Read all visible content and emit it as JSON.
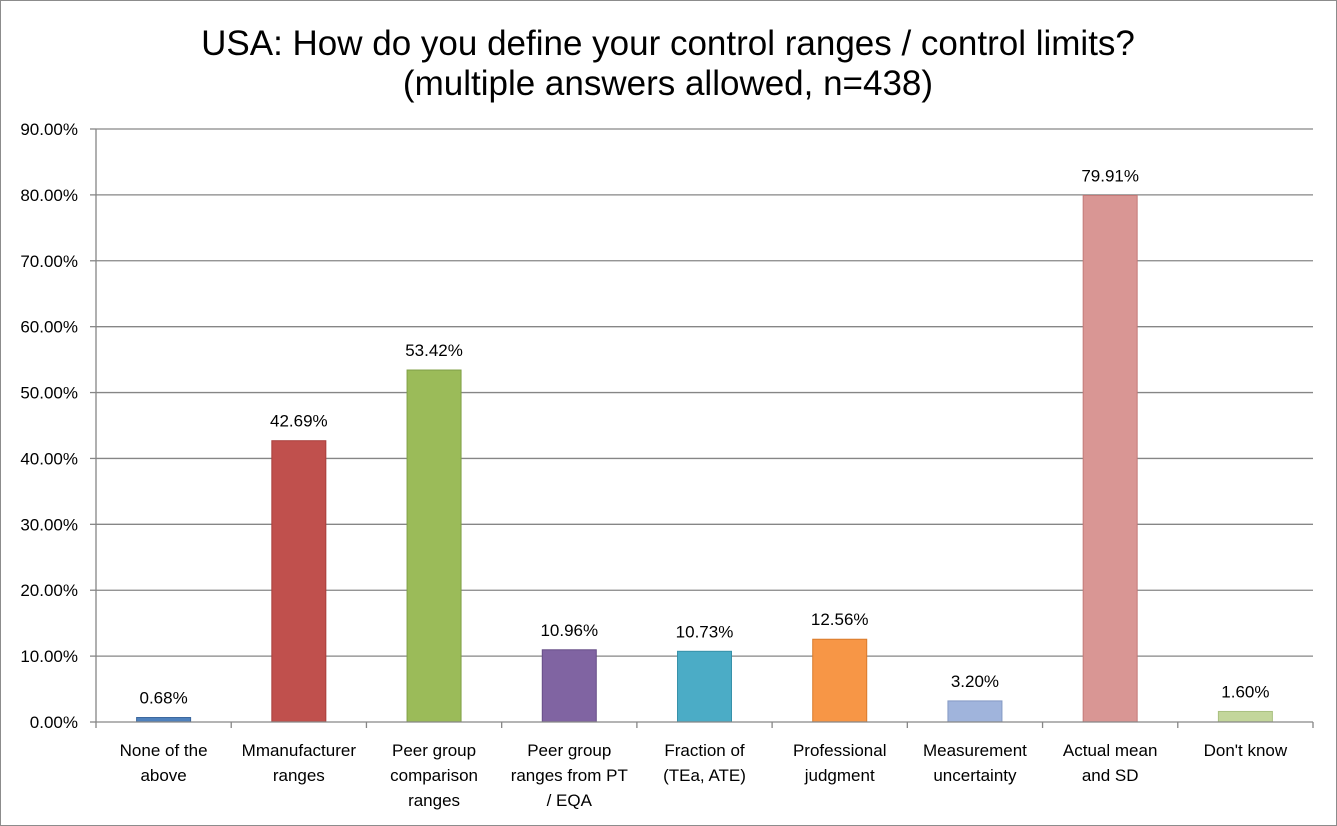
{
  "chart_data": {
    "type": "bar",
    "title_lines": [
      "USA: How do you define your control ranges / control limits?",
      "(multiple answers allowed, n=438)"
    ],
    "xlabel": "",
    "ylabel": "",
    "ylim": [
      0,
      90
    ],
    "yticks": [
      0,
      10,
      20,
      30,
      40,
      50,
      60,
      70,
      80,
      90
    ],
    "ytick_labels": [
      "0.00%",
      "10.00%",
      "20.00%",
      "30.00%",
      "40.00%",
      "50.00%",
      "60.00%",
      "70.00%",
      "80.00%",
      "90.00%"
    ],
    "grid": true,
    "legend": "none",
    "categories": [
      [
        "None of the",
        "above"
      ],
      [
        "Mmanufacturer",
        "ranges"
      ],
      [
        "Peer group",
        "comparison",
        "ranges"
      ],
      [
        "Peer group",
        "ranges from PT",
        "/ EQA"
      ],
      [
        "Fraction of",
        "(TEa, ATE)"
      ],
      [
        "Professional",
        "judgment"
      ],
      [
        "Measurement",
        "uncertainty"
      ],
      [
        "Actual mean",
        "and SD"
      ],
      [
        "Don't know"
      ]
    ],
    "values": [
      0.68,
      42.69,
      53.42,
      10.96,
      10.73,
      12.56,
      3.2,
      79.91,
      1.6
    ],
    "data_labels": [
      "0.68%",
      "42.69%",
      "53.42%",
      "10.96%",
      "10.73%",
      "12.56%",
      "3.20%",
      "79.91%",
      "1.60%"
    ],
    "colors": [
      "#4f81bd",
      "#c0504d",
      "#9bbb59",
      "#8064a2",
      "#4bacc6",
      "#f79646",
      "#a0b4dc",
      "#d99694",
      "#c3d69b"
    ],
    "bar_edge_colors": [
      "#3a659c",
      "#a83e3b",
      "#7fa046",
      "#664e87",
      "#3791a9",
      "#d97b2b",
      "#8499c4",
      "#c47a78",
      "#a9c080"
    ]
  }
}
